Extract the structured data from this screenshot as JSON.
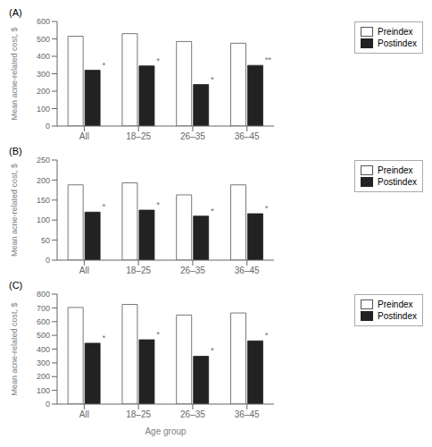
{
  "chart_data": [
    {
      "type": "bar",
      "title": "(A)",
      "ylabel": "Mean acne-related cost, $",
      "categories": [
        "All",
        "18–25",
        "26–35",
        "36–45"
      ],
      "series": [
        {
          "name": "Preindex",
          "color": "white",
          "values": [
            515,
            530,
            485,
            475
          ]
        },
        {
          "name": "Postindex",
          "color": "#222222",
          "values": [
            320,
            345,
            238,
            348
          ],
          "annotations": [
            "*",
            "*",
            "*",
            "**"
          ]
        }
      ],
      "ylim": [
        0,
        600
      ],
      "yticks": [
        0,
        100,
        200,
        300,
        400,
        500,
        600
      ],
      "grid": false,
      "legend": "right"
    },
    {
      "type": "bar",
      "title": "(B)",
      "ylabel": "Mean acne-related cost, $",
      "categories": [
        "All",
        "18–25",
        "26–35",
        "36–45"
      ],
      "series": [
        {
          "name": "Preindex",
          "color": "white",
          "values": [
            188,
            193,
            163,
            188
          ]
        },
        {
          "name": "Postindex",
          "color": "#222222",
          "values": [
            120,
            125,
            110,
            116
          ],
          "annotations": [
            "*",
            "*",
            "*",
            "*"
          ]
        }
      ],
      "ylim": [
        0,
        250
      ],
      "yticks": [
        0,
        50,
        100,
        150,
        200,
        250
      ],
      "grid": false,
      "legend": "right"
    },
    {
      "type": "bar",
      "title": "(C)",
      "ylabel": "Mean acne-related cost, $",
      "xlabel": "Age group",
      "categories": [
        "All",
        "18–25",
        "26–35",
        "36–45"
      ],
      "series": [
        {
          "name": "Preindex",
          "color": "white",
          "values": [
            703,
            725,
            648,
            663
          ]
        },
        {
          "name": "Postindex",
          "color": "#222222",
          "values": [
            443,
            468,
            348,
            460
          ],
          "annotations": [
            "*",
            "*",
            "*",
            "*"
          ]
        }
      ],
      "ylim": [
        0,
        800
      ],
      "yticks": [
        0,
        100,
        200,
        300,
        400,
        500,
        600,
        700,
        800
      ],
      "grid": false,
      "legend": "right"
    }
  ]
}
